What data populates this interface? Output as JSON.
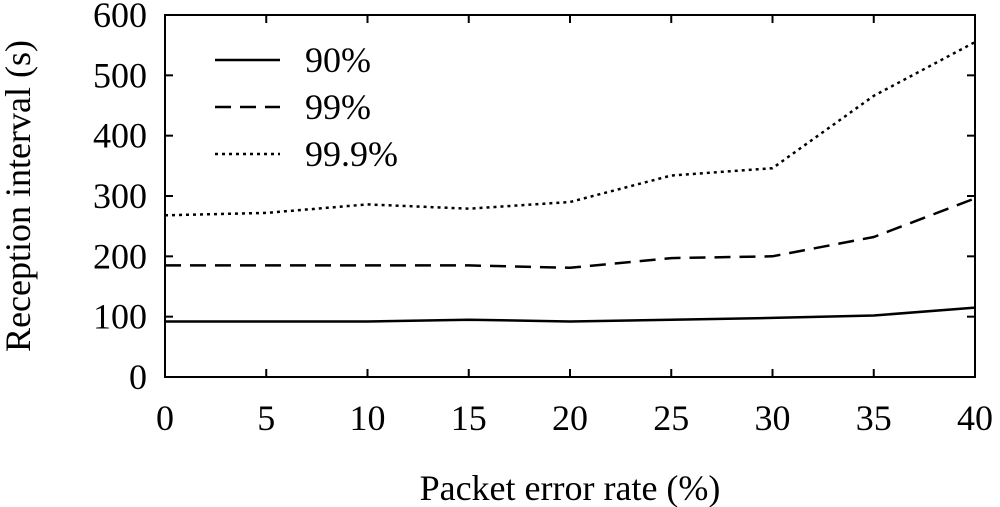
{
  "chart_data": {
    "type": "line",
    "xlabel": "Packet error rate (%)",
    "ylabel": "Reception interval (s)",
    "xlim": [
      0,
      40
    ],
    "ylim": [
      0,
      600
    ],
    "x_ticks": [
      "0",
      "5",
      "10",
      "15",
      "20",
      "25",
      "30",
      "35",
      "40"
    ],
    "y_ticks": [
      "0",
      "100",
      "200",
      "300",
      "400",
      "500",
      "600"
    ],
    "x": [
      0,
      5,
      10,
      15,
      20,
      25,
      30,
      35,
      40
    ],
    "grid": false,
    "legend_position": "top-left",
    "series": [
      {
        "name": "90%",
        "style": "solid",
        "values": [
          92,
          92,
          92,
          95,
          92,
          95,
          98,
          102,
          115
        ]
      },
      {
        "name": "99%",
        "style": "dashed",
        "values": [
          185,
          185,
          185,
          185,
          181,
          197,
          200,
          232,
          296
        ]
      },
      {
        "name": "99.9%",
        "style": "dotted",
        "values": [
          268,
          272,
          286,
          279,
          290,
          334,
          346,
          466,
          555
        ]
      }
    ]
  }
}
